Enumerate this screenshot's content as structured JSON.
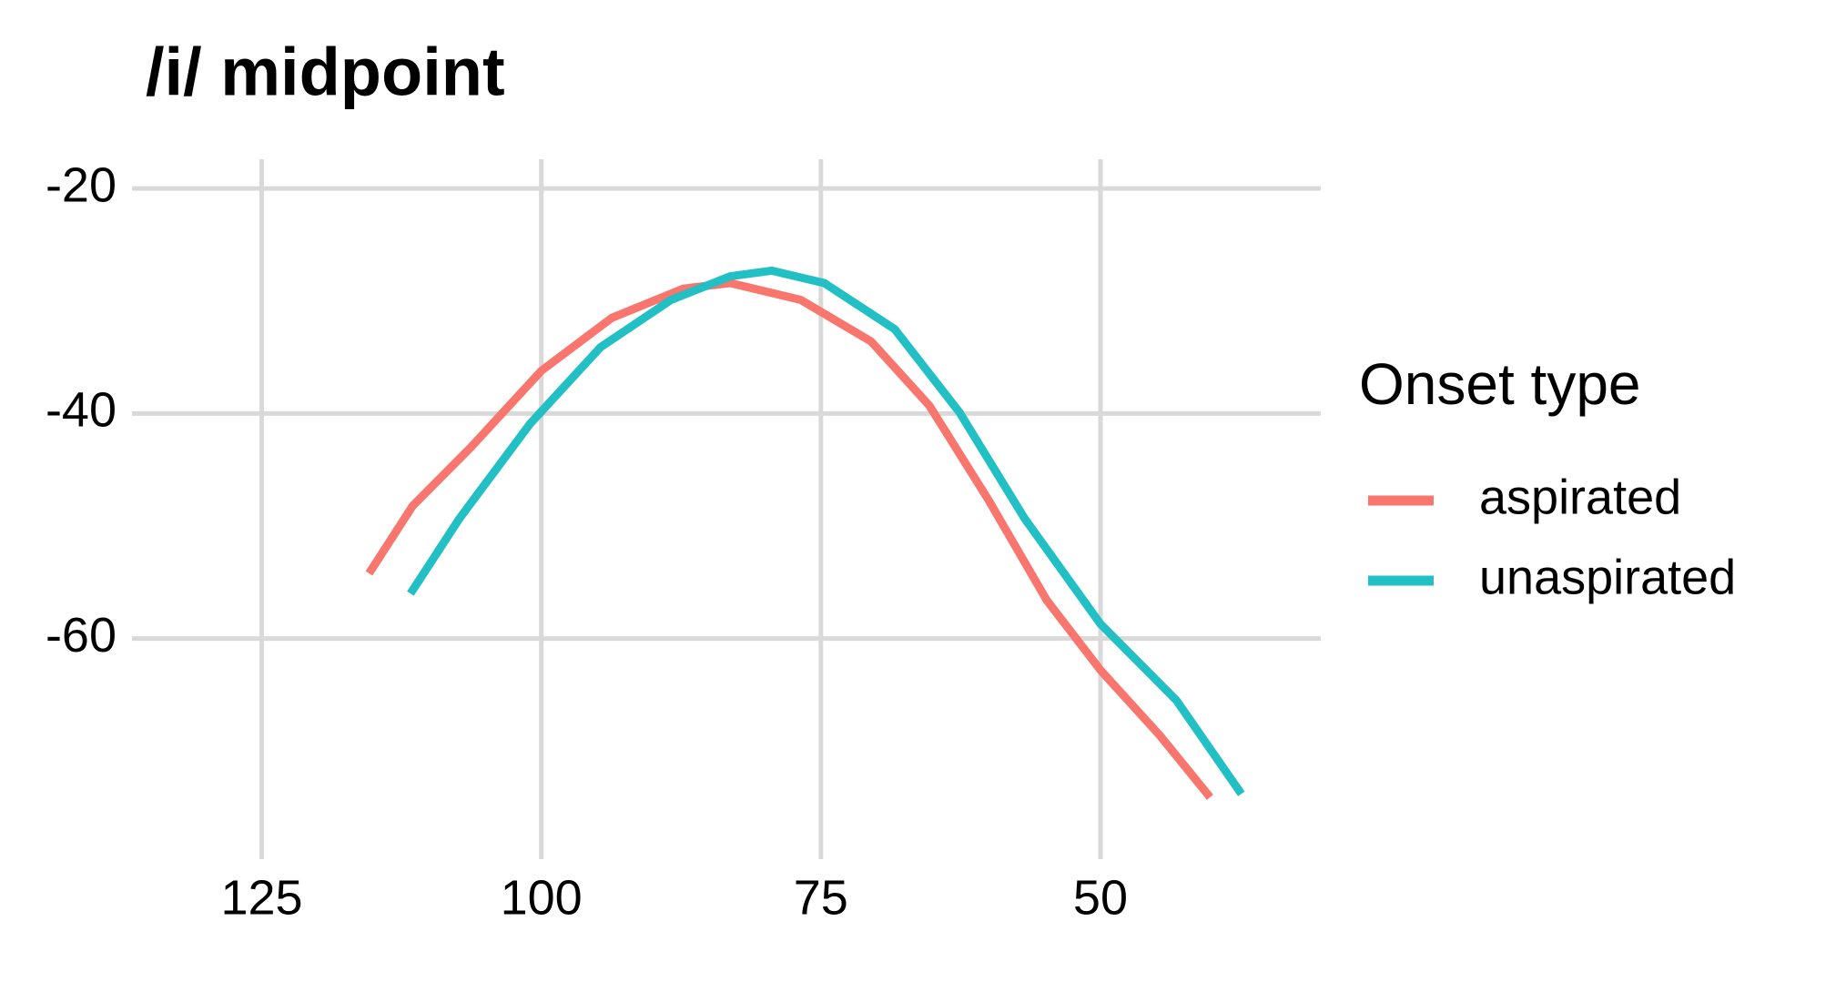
{
  "chart_data": {
    "type": "line",
    "title": "/i/ midpoint",
    "legend_title": "Onset type",
    "legend_position": "right",
    "x_reversed": true,
    "grid": true,
    "xlim": [
      136.6,
      30.3
    ],
    "xticks": [
      125,
      100,
      75,
      50
    ],
    "ylim": [
      -79.6,
      -17.4
    ],
    "yticks": [
      -20,
      -40,
      -60
    ],
    "series": [
      {
        "name": "aspirated",
        "color": "#f8766d",
        "x": [
          115.4,
          111.5,
          106.3,
          100,
          93.7,
          87.3,
          83.1,
          76.8,
          70.5,
          65.3,
          60.0,
          54.8,
          50,
          44.7,
          40.2
        ],
        "values": [
          -54.2,
          -48.2,
          -43.0,
          -36.2,
          -31.5,
          -28.9,
          -28.4,
          -29.9,
          -33.6,
          -39.3,
          -47.7,
          -56.6,
          -62.8,
          -68.6,
          -74.1
        ]
      },
      {
        "name": "unaspirated",
        "color": "#22bfc4",
        "x": [
          111.7,
          107.3,
          101,
          94.7,
          88.4,
          83.1,
          79.4,
          74.7,
          68.4,
          62.6,
          56.8,
          50,
          43.2,
          37.4
        ],
        "values": [
          -56.0,
          -49.3,
          -40.9,
          -34.1,
          -29.9,
          -27.8,
          -27.3,
          -28.4,
          -32.5,
          -39.9,
          -49.3,
          -58.7,
          -65.5,
          -73.8
        ]
      }
    ]
  }
}
